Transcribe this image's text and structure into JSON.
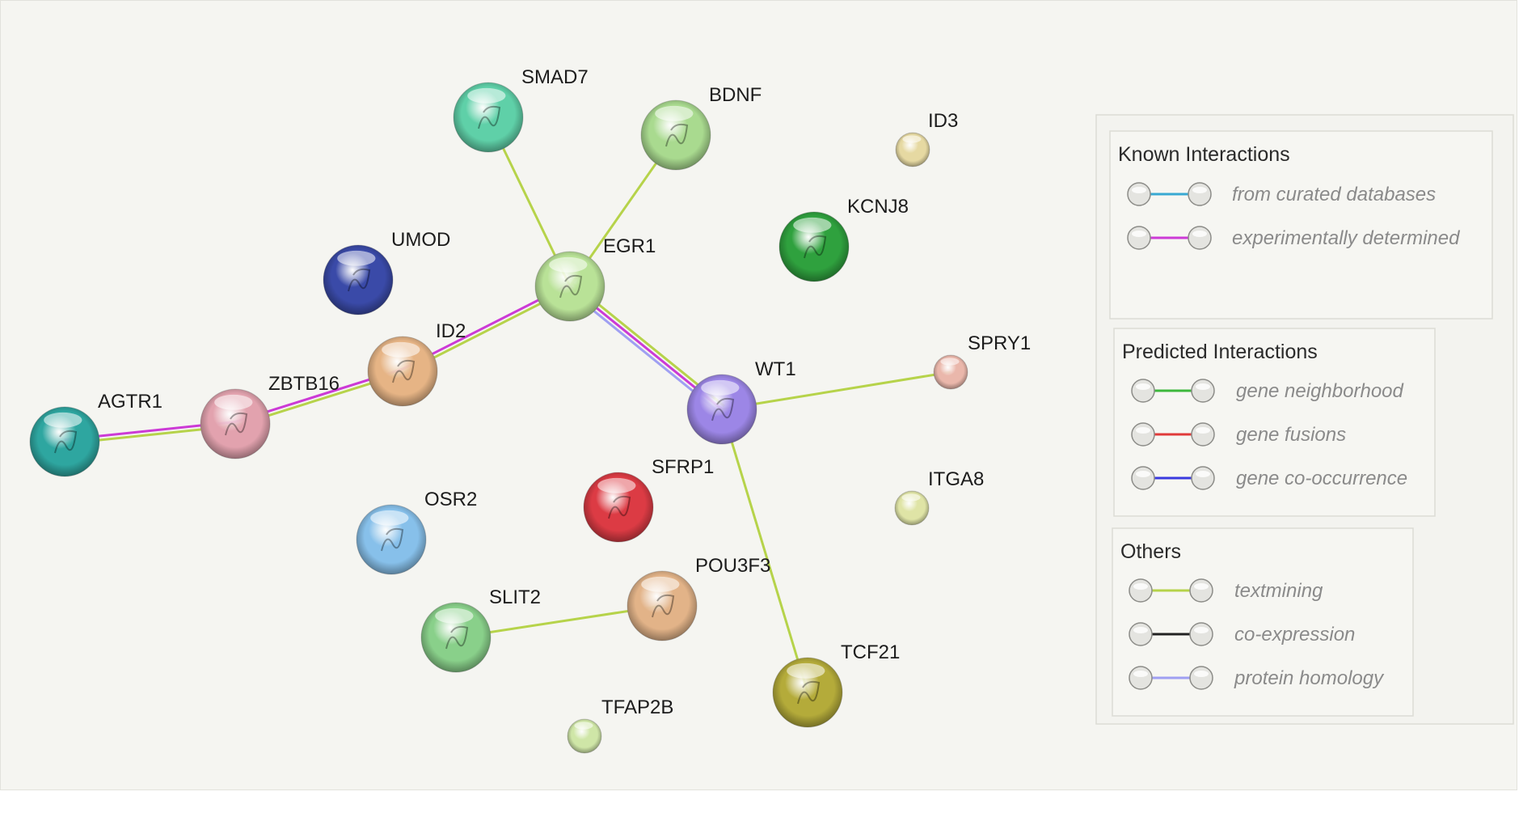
{
  "nodes": [
    {
      "id": "SMAD7",
      "label": "SMAD7",
      "color": "#5fd0a8"
    },
    {
      "id": "BDNF",
      "label": "BDNF",
      "color": "#a9da8f"
    },
    {
      "id": "ID3",
      "label": "ID3",
      "color": "#e6d9a2"
    },
    {
      "id": "KCNJ8",
      "label": "KCNJ8",
      "color": "#2fa13e"
    },
    {
      "id": "UMOD",
      "label": "UMOD",
      "color": "#3a4aa8"
    },
    {
      "id": "EGR1",
      "label": "EGR1",
      "color": "#b9e297"
    },
    {
      "id": "ID2",
      "label": "ID2",
      "color": "#e6b485"
    },
    {
      "id": "SPRY1",
      "label": "SPRY1",
      "color": "#eab7ab"
    },
    {
      "id": "AGTR1",
      "label": "AGTR1",
      "color": "#2ea6a0"
    },
    {
      "id": "ZBTB16",
      "label": "ZBTB16",
      "color": "#e2a2ae"
    },
    {
      "id": "WT1",
      "label": "WT1",
      "color": "#9c86e6"
    },
    {
      "id": "SFRP1",
      "label": "SFRP1",
      "color": "#dc3b44"
    },
    {
      "id": "ITGA8",
      "label": "ITGA8",
      "color": "#dfe4a6"
    },
    {
      "id": "OSR2",
      "label": "OSR2",
      "color": "#87c0ea"
    },
    {
      "id": "POU3F3",
      "label": "POU3F3",
      "color": "#e2b388"
    },
    {
      "id": "SLIT2",
      "label": "SLIT2",
      "color": "#89d08a"
    },
    {
      "id": "TCF21",
      "label": "TCF21",
      "color": "#b4ab3a"
    },
    {
      "id": "TFAP2B",
      "label": "TFAP2B",
      "color": "#cfe6a7"
    }
  ],
  "edges": [
    {
      "source": "SMAD7",
      "target": "EGR1",
      "types": [
        "textmining"
      ]
    },
    {
      "source": "BDNF",
      "target": "EGR1",
      "types": [
        "textmining"
      ]
    },
    {
      "source": "EGR1",
      "target": "WT1",
      "types": [
        "textmining",
        "experimentally_determined",
        "protein_homology"
      ]
    },
    {
      "source": "EGR1",
      "target": "ID2",
      "types": [
        "textmining",
        "experimentally_determined"
      ]
    },
    {
      "source": "ID2",
      "target": "ZBTB16",
      "types": [
        "textmining",
        "experimentally_determined"
      ]
    },
    {
      "source": "ZBTB16",
      "target": "AGTR1",
      "types": [
        "textmining",
        "experimentally_determined"
      ]
    },
    {
      "source": "WT1",
      "target": "SPRY1",
      "types": [
        "textmining"
      ]
    },
    {
      "source": "WT1",
      "target": "TCF21",
      "types": [
        "textmining"
      ]
    },
    {
      "source": "SLIT2",
      "target": "POU3F3",
      "types": [
        "textmining"
      ]
    }
  ],
  "edge_colors": {
    "curated_databases": "#38a9d3",
    "experimentally_determined": "#cc3ad6",
    "gene_neighborhood": "#3cb83c",
    "gene_fusions": "#e03a3a",
    "gene_cooccurrence": "#3a3adf",
    "textmining": "#b6d34a",
    "coexpression": "#222222",
    "protein_homology": "#9f9ff2"
  },
  "legend": {
    "known": {
      "title": "Known Interactions",
      "items": [
        {
          "label": "from curated databases",
          "color": "#38a9d3"
        },
        {
          "label": "experimentally determined",
          "color": "#cc3ad6"
        }
      ]
    },
    "predicted": {
      "title": "Predicted Interactions",
      "items": [
        {
          "label": "gene neighborhood",
          "color": "#3cb83c"
        },
        {
          "label": "gene fusions",
          "color": "#e03a3a"
        },
        {
          "label": "gene co-occurrence",
          "color": "#3a3adf"
        }
      ]
    },
    "others": {
      "title": "Others",
      "items": [
        {
          "label": "textmining",
          "color": "#b6d34a"
        },
        {
          "label": "co-expression",
          "color": "#222222"
        },
        {
          "label": "protein homology",
          "color": "#9f9ff2"
        }
      ]
    }
  }
}
